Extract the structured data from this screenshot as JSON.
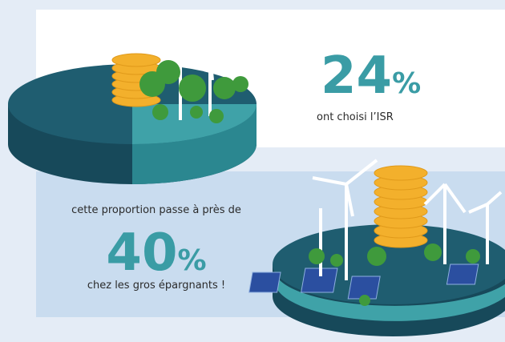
{
  "top": {
    "figure": "24",
    "unit": "%",
    "caption": "ont choisi l’ISR"
  },
  "bottom": {
    "intro": "cette proportion passe à près de",
    "figure": "40",
    "unit": "%",
    "caption": "chez les gros épargnants !"
  }
}
